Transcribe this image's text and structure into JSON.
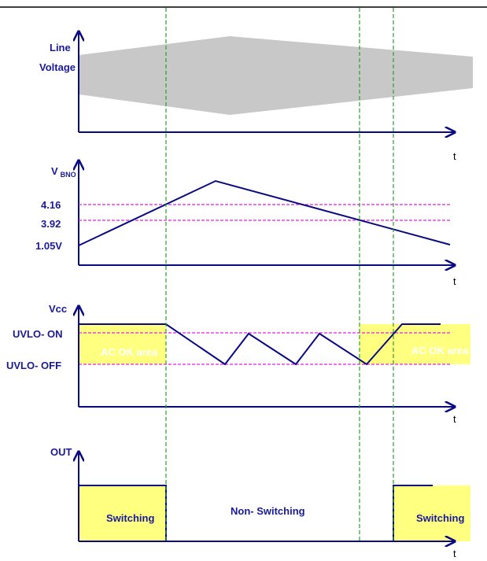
{
  "panels": {
    "line_voltage": {
      "label_line1": "Line",
      "label_line2": "Voltage",
      "axis_label": "t"
    },
    "vbno": {
      "label_main": "V",
      "label_sub": "BNO",
      "levels": [
        "4.16",
        "3.92",
        "1.05V"
      ],
      "axis_label": "t"
    },
    "vcc": {
      "label": "Vcc",
      "uvlo_on": "UVLO- ON",
      "uvlo_off": "UVLO- OFF",
      "area_left": "AC OK area",
      "area_right": "AC OK area",
      "axis_label": "t"
    },
    "out": {
      "label": "OUT",
      "switching_left": "Switching",
      "non_switching": "Non- Switching",
      "switching_right": "Switching",
      "axis_label": "t"
    }
  },
  "colors": {
    "trace": "#0a0a80",
    "threshold": "#e020e0",
    "guide": "#2aa02a",
    "highlight": "#ffff80",
    "envelope": "#c8c8c8"
  }
}
